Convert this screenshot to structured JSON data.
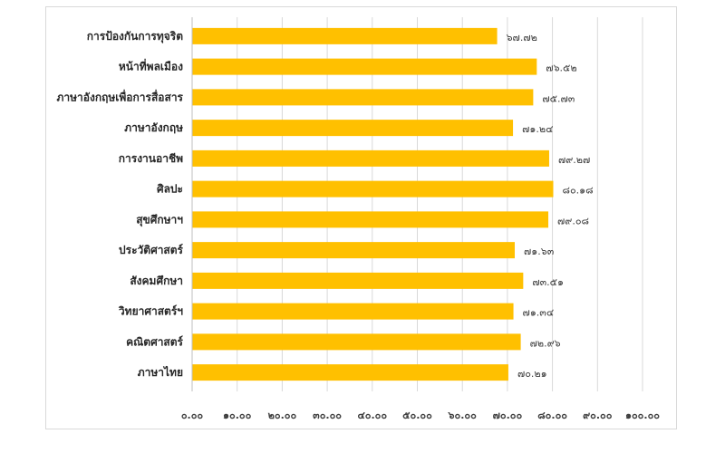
{
  "chart_data": {
    "type": "bar",
    "orientation": "horizontal",
    "categories": [
      "การป้องกันการทุจริต",
      "หน้าที่พลเมือง",
      "ภาษาอังกฤษเพื่อการสื่อสาร",
      "ภาษาอังกฤษ",
      "การงานอาชีพ",
      "ศิลปะ",
      "สุขศึกษาฯ",
      "ประวัติศาสตร์",
      "สังคมศึกษา",
      "วิทยาศาสตร์ฯ",
      "คณิตศาสตร์",
      "ภาษาไทย"
    ],
    "values": [
      67.72,
      76.52,
      75.73,
      71.24,
      79.27,
      80.18,
      79.08,
      71.63,
      73.51,
      71.34,
      72.96,
      70.21
    ],
    "value_labels": [
      "๖๗.๗๒",
      "๗๖.๕๒",
      "๗๕.๗๓",
      "๗๑.๒๔",
      "๗๙.๒๗",
      "๘๐.๑๘",
      "๗๙.๐๘",
      "๗๑.๖๓",
      "๗๓.๕๑",
      "๗๑.๓๔",
      "๗๒.๙๖",
      "๗๐.๒๑"
    ],
    "xlim": [
      0,
      100
    ],
    "ticks": [
      0,
      10,
      20,
      30,
      40,
      50,
      60,
      70,
      80,
      90,
      100
    ],
    "tick_labels": [
      "๐.๐๐",
      "๑๐.๐๐",
      "๒๐.๐๐",
      "๓๐.๐๐",
      "๔๐.๐๐",
      "๕๐.๐๐",
      "๖๐.๐๐",
      "๗๐.๐๐",
      "๘๐.๐๐",
      "๙๐.๐๐",
      "๑๐๐.๐๐"
    ],
    "bar_color": "#FFC000",
    "grid": true,
    "title": "",
    "xlabel": "",
    "ylabel": ""
  }
}
